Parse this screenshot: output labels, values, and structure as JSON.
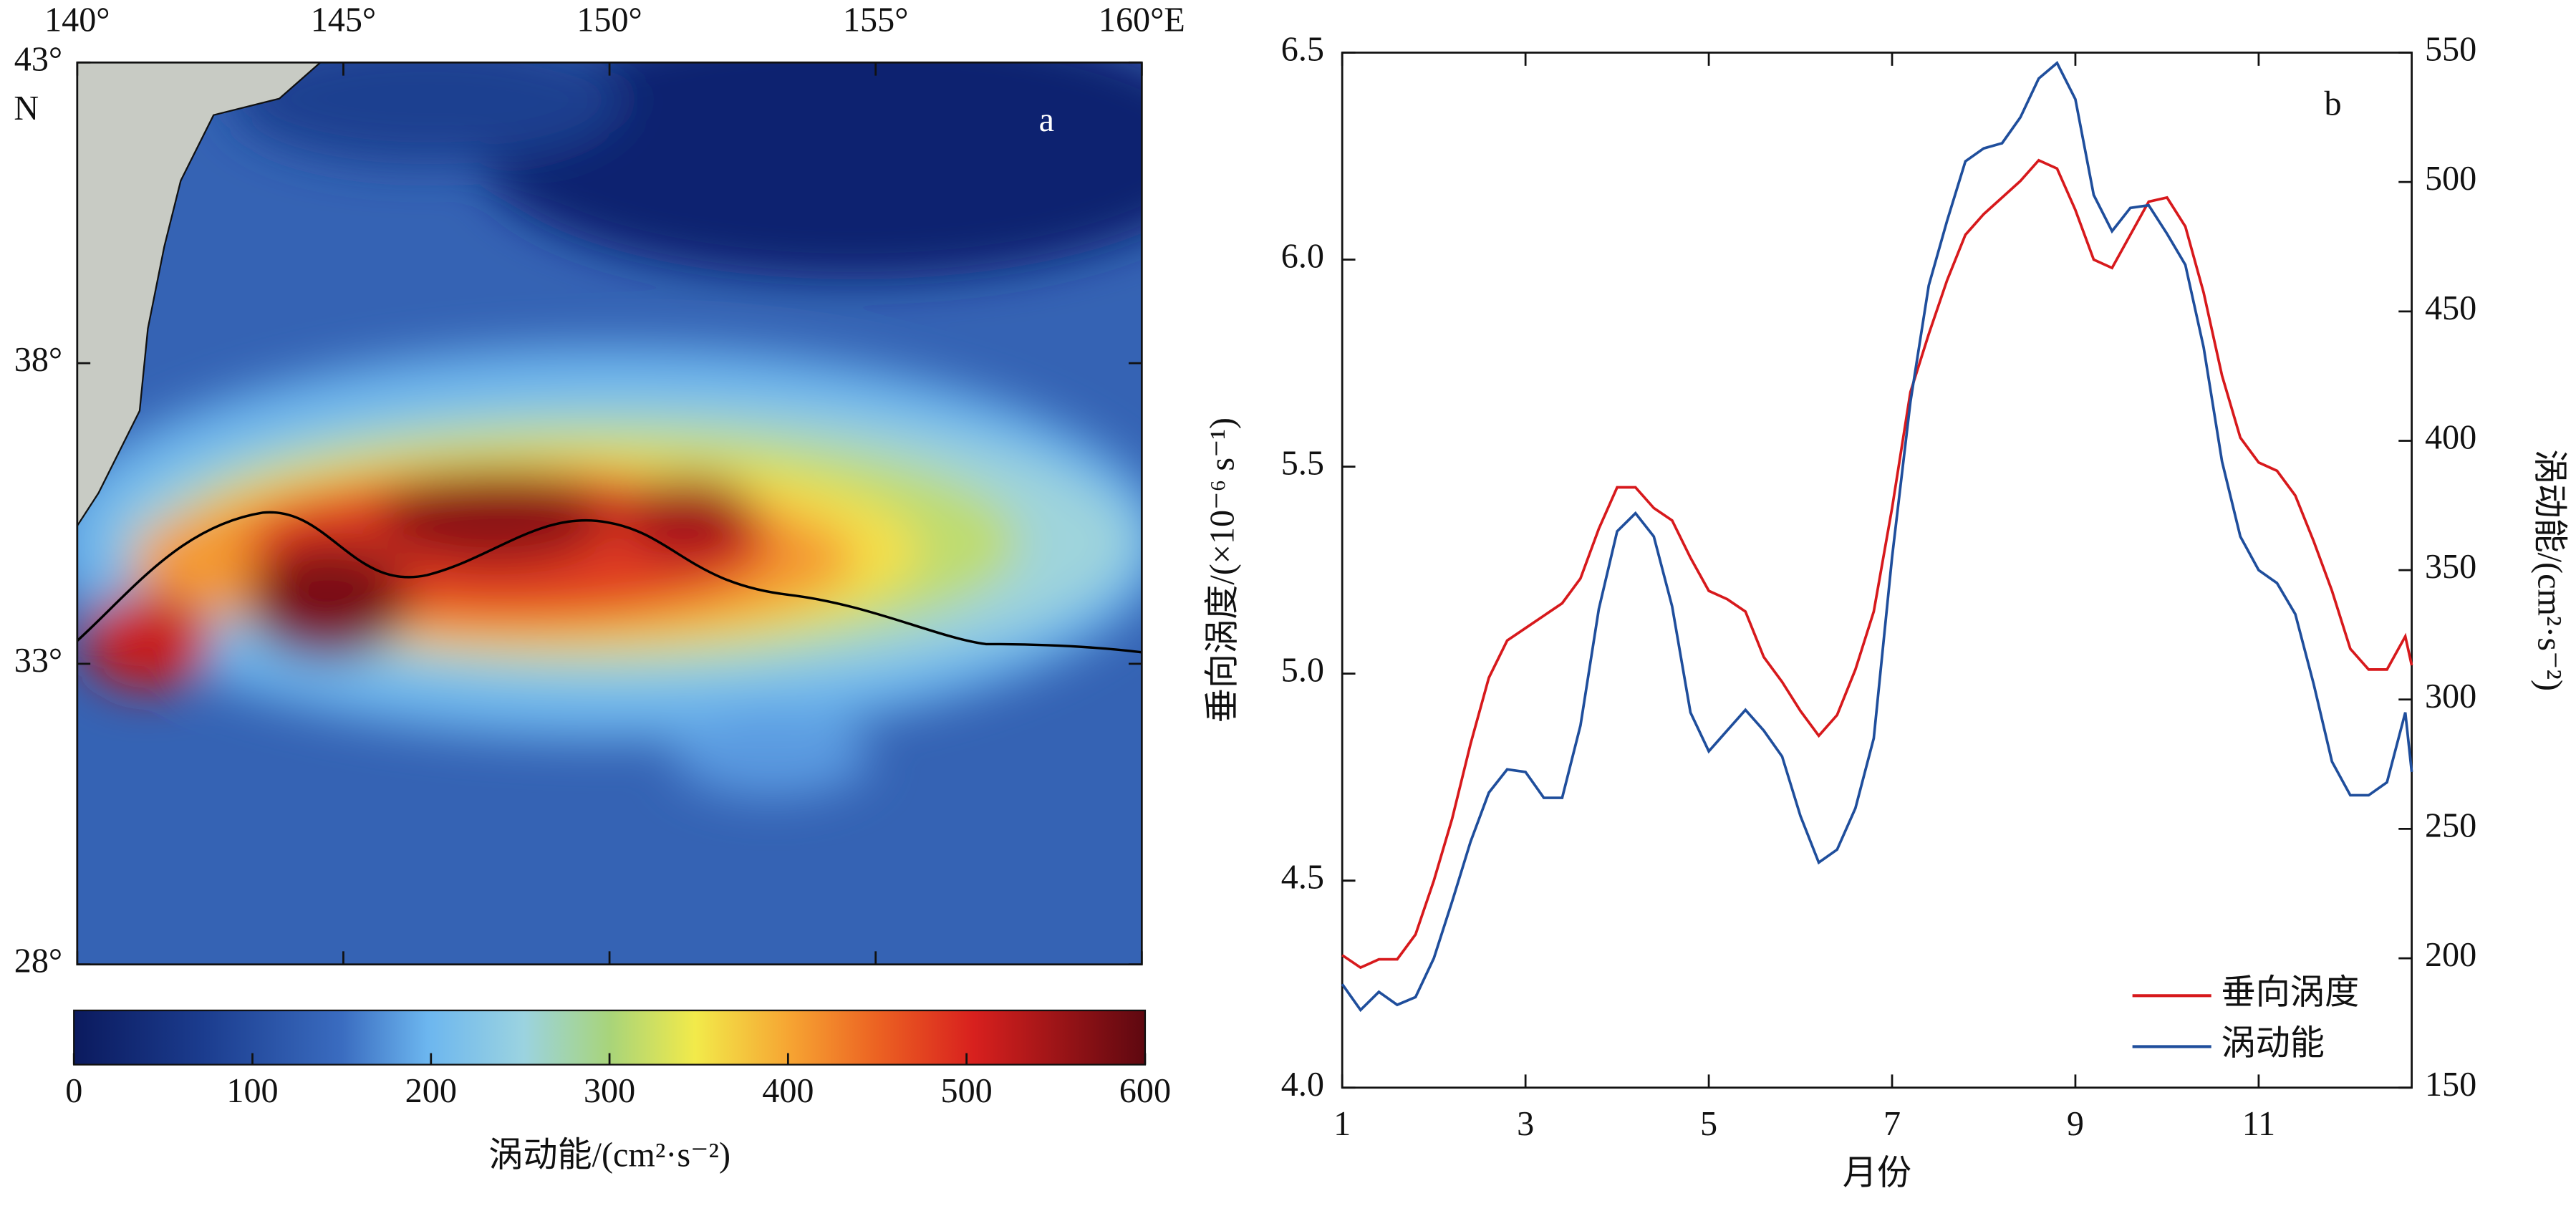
{
  "chart_data": [
    {
      "type": "map",
      "panel_label": "a",
      "xticks": [
        {
          "value": 140,
          "label": "140°"
        },
        {
          "value": 145,
          "label": "145°"
        },
        {
          "value": 150,
          "label": "150°"
        },
        {
          "value": 155,
          "label": "155°"
        },
        {
          "value": 160,
          "label": "160°E"
        }
      ],
      "xlim": [
        140,
        160
      ],
      "yticks": [
        {
          "value": 43,
          "label": "43°"
        },
        {
          "value": 38,
          "label": "38°"
        },
        {
          "value": 33,
          "label": "33°"
        },
        {
          "value": 28,
          "label": "28°"
        }
      ],
      "ylim": [
        28,
        43
      ],
      "lat_suffix": "N",
      "colorbar": {
        "label": "涡动能/(cm²·s⁻²)",
        "lim": [
          0,
          600
        ],
        "ticks": [
          0,
          100,
          200,
          300,
          400,
          500,
          600
        ]
      }
    },
    {
      "type": "line",
      "panel_label": "b",
      "xlabel": "月份",
      "ylabel": "垂向涡度/(×10⁻⁶ s⁻¹)",
      "y2label": "涡动能/(cm²·s⁻²)",
      "xlim": [
        1,
        12.67
      ],
      "xticks": [
        1,
        3,
        5,
        7,
        9,
        11
      ],
      "ylim": [
        4.0,
        6.5
      ],
      "yticks": [
        {
          "value": 4.0,
          "label": "4.0"
        },
        4.5,
        {
          "value": 5.0,
          "label": "5.0"
        },
        5.5,
        {
          "value": 6.0,
          "label": "6.0"
        },
        6.5
      ],
      "y2lim": [
        150,
        550
      ],
      "y2ticks": [
        150,
        200,
        250,
        300,
        350,
        400,
        450,
        500,
        550
      ],
      "legend": "lower right",
      "x": [
        1.0,
        1.2,
        1.4,
        1.6,
        1.8,
        2.0,
        2.2,
        2.4,
        2.6,
        2.8,
        3.0,
        3.2,
        3.4,
        3.6,
        3.8,
        4.0,
        4.2,
        4.4,
        4.6,
        4.8,
        5.0,
        5.2,
        5.4,
        5.6,
        5.8,
        6.0,
        6.2,
        6.4,
        6.6,
        6.8,
        7.0,
        7.2,
        7.4,
        7.6,
        7.8,
        8.0,
        8.2,
        8.4,
        8.6,
        8.8,
        9.0,
        9.2,
        9.4,
        9.6,
        9.8,
        10.0,
        10.2,
        10.4,
        10.6,
        10.8,
        11.0,
        11.2,
        11.4,
        11.6,
        11.8,
        12.0,
        12.2,
        12.4,
        12.6,
        12.67
      ],
      "series": [
        {
          "name": "垂向涡度",
          "color": "#d7191c",
          "axis": "y",
          "values": [
            4.32,
            4.29,
            4.31,
            4.31,
            4.37,
            4.5,
            4.65,
            4.83,
            4.99,
            5.08,
            5.11,
            5.14,
            5.17,
            5.23,
            5.35,
            5.45,
            5.45,
            5.4,
            5.37,
            5.28,
            5.2,
            5.18,
            5.15,
            5.04,
            4.98,
            4.91,
            4.85,
            4.9,
            5.01,
            5.15,
            5.4,
            5.68,
            5.82,
            5.95,
            6.06,
            6.11,
            6.15,
            6.19,
            6.24,
            6.22,
            6.12,
            6.0,
            5.98,
            6.06,
            6.14,
            6.15,
            6.08,
            5.92,
            5.72,
            5.57,
            5.51,
            5.49,
            5.43,
            5.32,
            5.2,
            5.06,
            5.01,
            5.01,
            5.09,
            5.02
          ]
        },
        {
          "name": "涡动能",
          "color": "#1f4e9c",
          "axis": "y2",
          "values": [
            190,
            180,
            187,
            182,
            185,
            200,
            222,
            245,
            264,
            273,
            272,
            262,
            262,
            290,
            335,
            365,
            372,
            363,
            336,
            295,
            280,
            288,
            296,
            288,
            278,
            255,
            237,
            242,
            258,
            285,
            355,
            415,
            460,
            485,
            508,
            513,
            515,
            525,
            540,
            546,
            532,
            495,
            481,
            490,
            491,
            480,
            468,
            436,
            392,
            363,
            350,
            345,
            333,
            306,
            276,
            263,
            263,
            268,
            295,
            272
          ]
        }
      ]
    }
  ]
}
